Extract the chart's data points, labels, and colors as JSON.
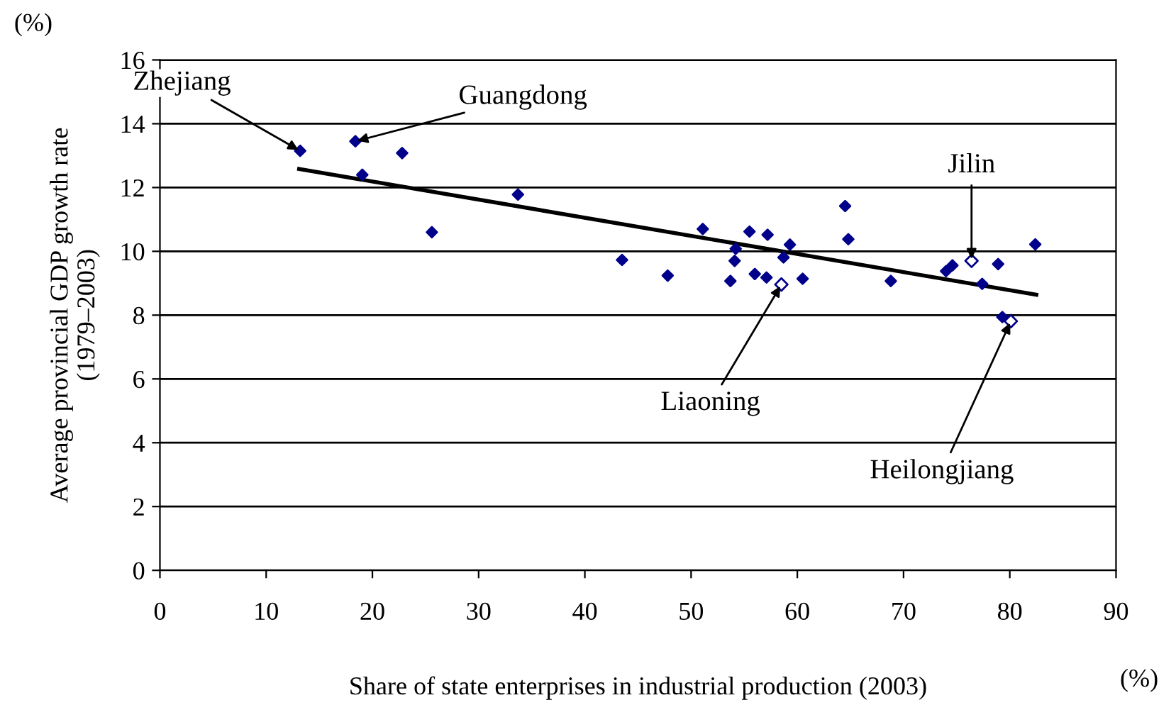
{
  "chart_data": {
    "type": "scatter",
    "xlabel": "Share of state enterprises in industrial production (2003)",
    "ylabel": "Average provincial GDP growth rate\n(1979–2003)",
    "xlim": [
      0,
      90
    ],
    "xticks": [
      0,
      10,
      20,
      30,
      40,
      50,
      60,
      70,
      80,
      90
    ],
    "ylim": [
      0,
      16
    ],
    "yticks": [
      0,
      2,
      4,
      6,
      8,
      10,
      12,
      14,
      16
    ],
    "grid": "y",
    "marker": "diamond",
    "series": [
      {
        "type": "scatter",
        "color": "#00008b",
        "marker": "diamond",
        "x": [
          13.2,
          18.4,
          19.05,
          22.8,
          25.6,
          33.7,
          43.5,
          47.8,
          51.1,
          54.2,
          54.1,
          53.7,
          55.5,
          56.0,
          57.1,
          57.2,
          58.7,
          59.3,
          60.5,
          64.5,
          64.8,
          68.8,
          74.0,
          74.6,
          77.4,
          78.9,
          82.4,
          79.3
        ],
        "values": [
          13.15,
          13.45,
          12.4,
          13.08,
          10.6,
          11.78,
          9.73,
          9.24,
          10.7,
          10.08,
          9.7,
          9.07,
          10.62,
          9.29,
          9.18,
          10.52,
          9.81,
          10.21,
          9.14,
          11.42,
          10.38,
          9.07,
          9.38,
          9.56,
          8.98,
          9.6,
          10.22,
          7.94
        ]
      },
      {
        "type": "scatter",
        "color": "#00008b",
        "marker": "diamond_open",
        "x": [
          58.5,
          76.4,
          80.1
        ],
        "values": [
          8.96,
          9.7,
          7.81
        ]
      },
      {
        "type": "line",
        "color": "#000000",
        "marker": "none",
        "x": [
          13.1,
          82.5
        ],
        "values": [
          12.58,
          8.64
        ]
      }
    ],
    "annotations": [
      {
        "text": "Zhejiang",
        "x": 13.2,
        "y": 13.15
      },
      {
        "text": "Guangdong",
        "x": 18.4,
        "y": 13.45
      },
      {
        "text": "Jilin",
        "x": 76.4,
        "y": 9.7
      },
      {
        "text": "Liaoning",
        "x": 58.5,
        "y": 8.96
      },
      {
        "text": "Heilongjiang",
        "x": 80.1,
        "y": 7.81
      },
      "(%)",
      "(%)"
    ]
  }
}
